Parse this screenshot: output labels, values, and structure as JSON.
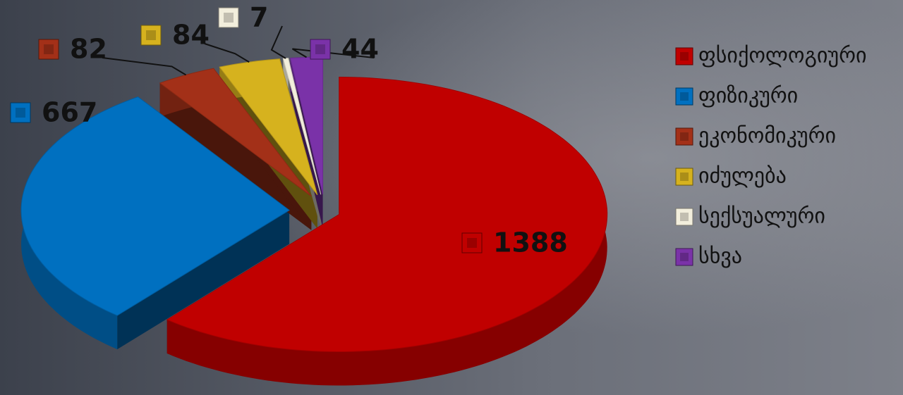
{
  "chart_data": {
    "type": "pie3d",
    "categories": [
      "ფსიქოლოგიური",
      "ფიზიკური",
      "ეკონომიკური",
      "იძულება",
      "სექსუალური",
      "სხვა"
    ],
    "values": [
      1388,
      667,
      82,
      84,
      7,
      44
    ],
    "colors": [
      "#c00000",
      "#0070c0",
      "#a33018",
      "#d6b21e",
      "#f2eedc",
      "#7a32a8"
    ],
    "legend": "right"
  }
}
